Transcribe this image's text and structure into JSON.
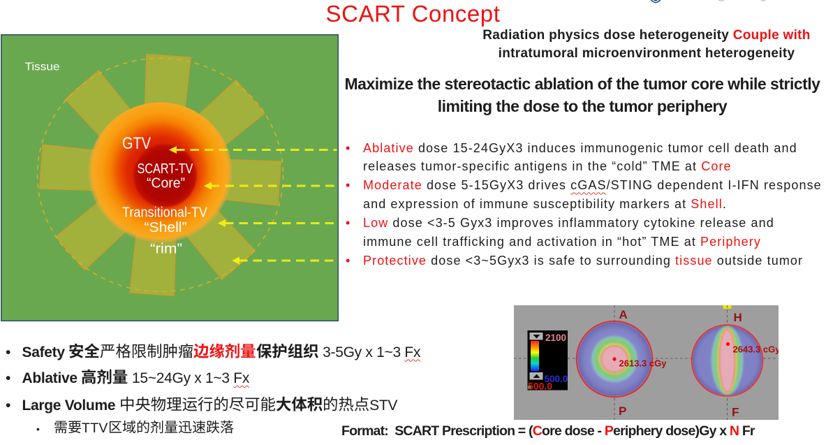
{
  "colors": {
    "accent_red": "#ee1111",
    "text_black": "#1d1d1d",
    "slide_green": "#6aa84f",
    "petal_green": "#a2b03c",
    "arrow_yellow": "#f2f218",
    "panel_gray": "#9e9e9e",
    "dark_red_label": "#8f1313",
    "navy_border": "#2e4d6b"
  },
  "title": "SCART Concept",
  "logo": {
    "name": "shield-logo"
  },
  "header_couple": {
    "line1_black": "Radiation physics dose heterogeneity ",
    "line1_red": "Couple with",
    "line2": "intratumoral microenvironment heterogeneity"
  },
  "header_maximize": {
    "line1": "Maximize the stereotactic ablation of the tumor core while strictly",
    "line2": "limiting the dose to the tumor periphery"
  },
  "diagram": {
    "tissue": "Tissue",
    "gtv": "GTV",
    "scart_tv": "SCART-TV",
    "core": "“Core”",
    "transitional_tv": "Transitional-TV",
    "shell": "“Shell”",
    "rim": "“rim”"
  },
  "bullets": [
    {
      "segments": [
        {
          "t": "Ablative",
          "red": true
        },
        {
          "t": " dose 15-24GyX3 induces immunogenic tumor cell death and"
        },
        {
          "br": true
        },
        {
          "t": "releases tumor-specific antigens in the “cold” TME at "
        },
        {
          "t": "Core",
          "red": true
        }
      ]
    },
    {
      "segments": [
        {
          "t": "Moderate",
          "red": true
        },
        {
          "t": " dose 5-15GyX3 drives "
        },
        {
          "t": "cGAS",
          "wavy": true
        },
        {
          "t": "/STING dependent I-IFN response"
        },
        {
          "br": true
        },
        {
          "t": "and expression of immune susceptibility markers at "
        },
        {
          "t": "Shell",
          "red": true
        },
        {
          "t": "."
        }
      ]
    },
    {
      "segments": [
        {
          "t": "Low",
          "red": true
        },
        {
          "t": " dose <3-5 Gyx3 improves inflammatory cytokine release and"
        },
        {
          "br": true
        },
        {
          "t": "immune cell trafficking and activation in “hot” TME at "
        },
        {
          "t": "Periphery",
          "red": true
        }
      ]
    },
    {
      "segments": [
        {
          "t": "Protective",
          "red": true
        },
        {
          "t": " dose <3~5Gyx3 is safe to surrounding "
        },
        {
          "t": "tissue",
          "red": true
        },
        {
          "t": " outside tumor"
        }
      ]
    }
  ],
  "bottom_bullets": [
    {
      "segments": [
        {
          "t": "Safety ",
          "bold": true
        },
        {
          "t": "安全",
          "cjk": true,
          "bold": true
        },
        {
          "t": "严格限制肿瘤",
          "cjk": true
        },
        {
          "t": "边缘剂量",
          "cjk": true,
          "bold": true,
          "red": true
        },
        {
          "t": "保护组织",
          "cjk": true,
          "bold": true
        },
        {
          "t": " 3-5Gy x 1~3 "
        },
        {
          "t": "Fx",
          "wavy": true
        }
      ]
    },
    {
      "segments": [
        {
          "t": "Ablative ",
          "bold": true
        },
        {
          "t": "高剂量",
          "cjk": true,
          "bold": true
        },
        {
          "t": " 15~24Gy x 1~3 "
        },
        {
          "t": "Fx",
          "wavy": true
        }
      ]
    },
    {
      "segments": [
        {
          "t": "Large Volume ",
          "bold": true
        },
        {
          "t": "中央物理运行的尽可能",
          "cjk": true
        },
        {
          "t": "大体积",
          "cjk": true,
          "bold": true
        },
        {
          "t": "的热点",
          "cjk": true
        },
        {
          "t": "STV"
        }
      ]
    }
  ],
  "sub_bullet": {
    "segments": [
      {
        "t": "需要",
        "cjk": true
      },
      {
        "t": "TTV"
      },
      {
        "t": "区域的剂量迅速跌落",
        "cjk": true
      }
    ]
  },
  "format_line": {
    "segments": [
      {
        "t": "Format:  SCART Prescription = ("
      },
      {
        "t": "C",
        "red": true
      },
      {
        "t": "ore dose - "
      },
      {
        "t": "P",
        "red": true
      },
      {
        "t": "eriphery dose)Gy x "
      },
      {
        "t": "N",
        "red": true
      },
      {
        "t": " Fr"
      }
    ]
  },
  "dose_panel": {
    "colorbar": {
      "max": "2100",
      "min": "500.0",
      "level": "500.0"
    },
    "axial": {
      "top": "A",
      "bottom": "P",
      "dose": "2613.3 cGy"
    },
    "sagittal": {
      "top": "H",
      "bottom": "F",
      "dose": "2643.3 cGy"
    }
  }
}
